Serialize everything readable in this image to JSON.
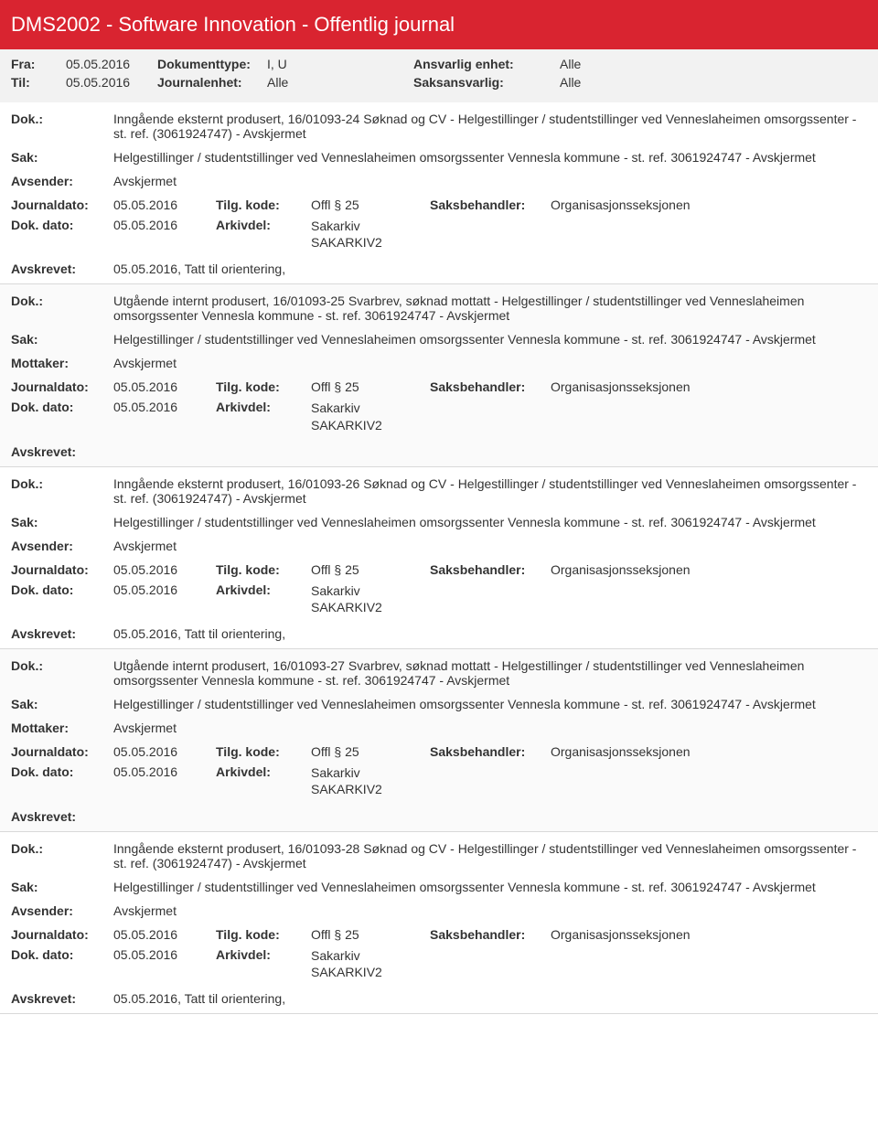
{
  "banner": {
    "title": "DMS2002 - Software Innovation - Offentlig journal"
  },
  "meta": {
    "fra_label": "Fra:",
    "fra_value": "05.05.2016",
    "til_label": "Til:",
    "til_value": "05.05.2016",
    "doktype_label": "Dokumenttype:",
    "doktype_value": "I, U",
    "journalenhet_label": "Journalenhet:",
    "journalenhet_value": "Alle",
    "ansvarlig_label": "Ansvarlig enhet:",
    "ansvarlig_value": "Alle",
    "saksansvarlig_label": "Saksansvarlig:",
    "saksansvarlig_value": "Alle"
  },
  "labels": {
    "dok": "Dok.:",
    "sak": "Sak:",
    "avsender": "Avsender:",
    "mottaker": "Mottaker:",
    "journaldato": "Journaldato:",
    "dokdato": "Dok. dato:",
    "tilgkode": "Tilg. kode:",
    "arkivdel": "Arkivdel:",
    "saksbehandler": "Saksbehandler:",
    "avskrevet": "Avskrevet:"
  },
  "common": {
    "sak_text": "Helgestillinger / studentstillinger ved Venneslaheimen omsorgssenter Vennesla kommune - st. ref. 3061924747 - Avskjermet",
    "avskjermet": "Avskjermet",
    "date": "05.05.2016",
    "tilg": "Offl § 25",
    "arkiv": "Sakarkiv\nSAKARKIV2",
    "saksbeh": "Organisasjonsseksjonen",
    "avskr_tatt": "05.05.2016, Tatt til orientering,"
  },
  "entries": [
    {
      "dok": "Inngående eksternt produsert, 16/01093-24 Søknad og CV - Helgestillinger / studentstillinger ved Venneslaheimen omsorgssenter - st. ref. (3061924747) - Avskjermet",
      "party_label": "Avsender:",
      "avskrevet": "05.05.2016, Tatt til orientering,"
    },
    {
      "dok": "Utgående internt produsert, 16/01093-25 Svarbrev, søknad mottatt - Helgestillinger / studentstillinger ved Venneslaheimen omsorgssenter Vennesla kommune - st. ref. 3061924747 - Avskjermet",
      "party_label": "Mottaker:",
      "avskrevet": ""
    },
    {
      "dok": "Inngående eksternt produsert, 16/01093-26 Søknad og CV - Helgestillinger / studentstillinger ved Venneslaheimen omsorgssenter - st. ref. (3061924747) - Avskjermet",
      "party_label": "Avsender:",
      "avskrevet": "05.05.2016, Tatt til orientering,"
    },
    {
      "dok": "Utgående internt produsert, 16/01093-27 Svarbrev, søknad mottatt - Helgestillinger / studentstillinger ved Venneslaheimen omsorgssenter Vennesla kommune - st. ref. 3061924747 - Avskjermet",
      "party_label": "Mottaker:",
      "avskrevet": ""
    },
    {
      "dok": "Inngående eksternt produsert, 16/01093-28 Søknad og CV - Helgestillinger / studentstillinger ved Venneslaheimen omsorgssenter - st. ref. (3061924747) - Avskjermet",
      "party_label": "Avsender:",
      "avskrevet": "05.05.2016, Tatt til orientering,"
    }
  ]
}
